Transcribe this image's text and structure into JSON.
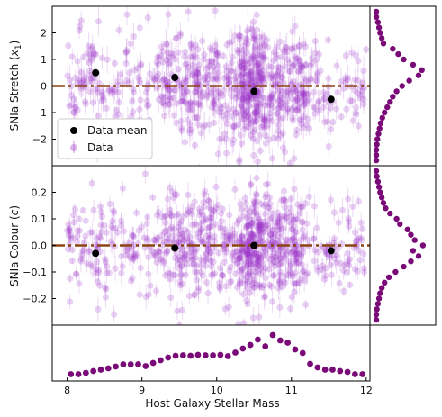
{
  "colors": {
    "data": "#9b30c8",
    "mean": "#000000",
    "fit_line": "#8b4513",
    "marginal": "#7a0a78"
  },
  "chart_data": [
    {
      "type": "scatter",
      "panel": "top",
      "ylabel": "SNIa Stretch ($x_1$)",
      "xlim": [
        7.8,
        12.05
      ],
      "ylim": [
        -3.0,
        3.0
      ],
      "yticks": [
        2,
        1,
        0,
        -1,
        -2
      ],
      "legend": {
        "placement": "lower-left",
        "entries": [
          "Data mean",
          "Data"
        ]
      },
      "mean_x": [
        8.38,
        9.44,
        10.5,
        11.53
      ],
      "mean_y": [
        0.5,
        0.32,
        -0.2,
        -0.5
      ],
      "fit_line_y": 0.0
    },
    {
      "type": "scatter",
      "panel": "middle",
      "ylabel": "SNIa Colour ($c$)",
      "xlim": [
        7.8,
        12.05
      ],
      "ylim": [
        -0.3,
        0.3
      ],
      "yticks": [
        0.2,
        0.1,
        0.0,
        -0.1,
        -0.2
      ],
      "mean_x": [
        8.38,
        9.44,
        10.5,
        11.53
      ],
      "mean_y": [
        -0.03,
        -0.01,
        0.0,
        -0.02
      ],
      "fit_line_y": 0.0
    },
    {
      "type": "scatter",
      "panel": "bottom-marginal",
      "xlabel": "Host Galaxy Stellar Mass",
      "xlim": [
        7.8,
        12.05
      ],
      "xticks": [
        8,
        9,
        10,
        11,
        12
      ],
      "x": [
        8.05,
        8.15,
        8.25,
        8.35,
        8.45,
        8.55,
        8.65,
        8.75,
        8.85,
        8.95,
        9.05,
        9.15,
        9.25,
        9.35,
        9.45,
        9.55,
        9.65,
        9.75,
        9.85,
        9.95,
        10.05,
        10.15,
        10.25,
        10.35,
        10.45,
        10.55,
        10.65,
        10.75,
        10.85,
        10.95,
        11.05,
        11.15,
        11.25,
        11.35,
        11.45,
        11.55,
        11.65,
        11.75,
        11.85,
        11.95
      ],
      "y": [
        0.05,
        0.05,
        0.08,
        0.12,
        0.15,
        0.18,
        0.22,
        0.27,
        0.27,
        0.27,
        0.23,
        0.3,
        0.36,
        0.42,
        0.46,
        0.47,
        0.46,
        0.48,
        0.47,
        0.47,
        0.48,
        0.45,
        0.53,
        0.62,
        0.7,
        0.82,
        0.67,
        0.92,
        0.8,
        0.75,
        0.6,
        0.52,
        0.28,
        0.2,
        0.15,
        0.15,
        0.12,
        0.1,
        0.05,
        0.05
      ]
    },
    {
      "type": "scatter",
      "panel": "right-marginal-stretch",
      "y": [
        2.8,
        2.6,
        2.4,
        2.2,
        2.0,
        1.8,
        1.6,
        1.4,
        1.2,
        1.0,
        0.8,
        0.6,
        0.4,
        0.2,
        0.0,
        -0.2,
        -0.4,
        -0.6,
        -0.8,
        -1.0,
        -1.2,
        -1.4,
        -1.6,
        -1.8,
        -2.0,
        -2.2,
        -2.4,
        -2.6,
        -2.8
      ],
      "density": [
        0.05,
        0.05,
        0.08,
        0.1,
        0.12,
        0.15,
        0.18,
        0.35,
        0.45,
        0.55,
        0.72,
        0.88,
        0.82,
        0.65,
        0.52,
        0.42,
        0.35,
        0.3,
        0.25,
        0.2,
        0.16,
        0.13,
        0.11,
        0.09,
        0.07,
        0.06,
        0.05,
        0.05,
        0.05
      ]
    },
    {
      "type": "scatter",
      "panel": "right-marginal-colour",
      "y": [
        0.28,
        0.26,
        0.24,
        0.22,
        0.2,
        0.18,
        0.16,
        0.14,
        0.12,
        0.1,
        0.08,
        0.06,
        0.04,
        0.02,
        0.0,
        -0.02,
        -0.04,
        -0.06,
        -0.08,
        -0.1,
        -0.12,
        -0.14,
        -0.16,
        -0.18,
        -0.2,
        -0.22,
        -0.24,
        -0.26,
        -0.28
      ],
      "density": [
        0.05,
        0.06,
        0.08,
        0.1,
        0.12,
        0.15,
        0.18,
        0.22,
        0.3,
        0.42,
        0.48,
        0.62,
        0.68,
        0.75,
        0.9,
        0.72,
        0.82,
        0.68,
        0.55,
        0.4,
        0.28,
        0.2,
        0.15,
        0.12,
        0.1,
        0.08,
        0.06,
        0.05,
        0.05
      ]
    }
  ]
}
